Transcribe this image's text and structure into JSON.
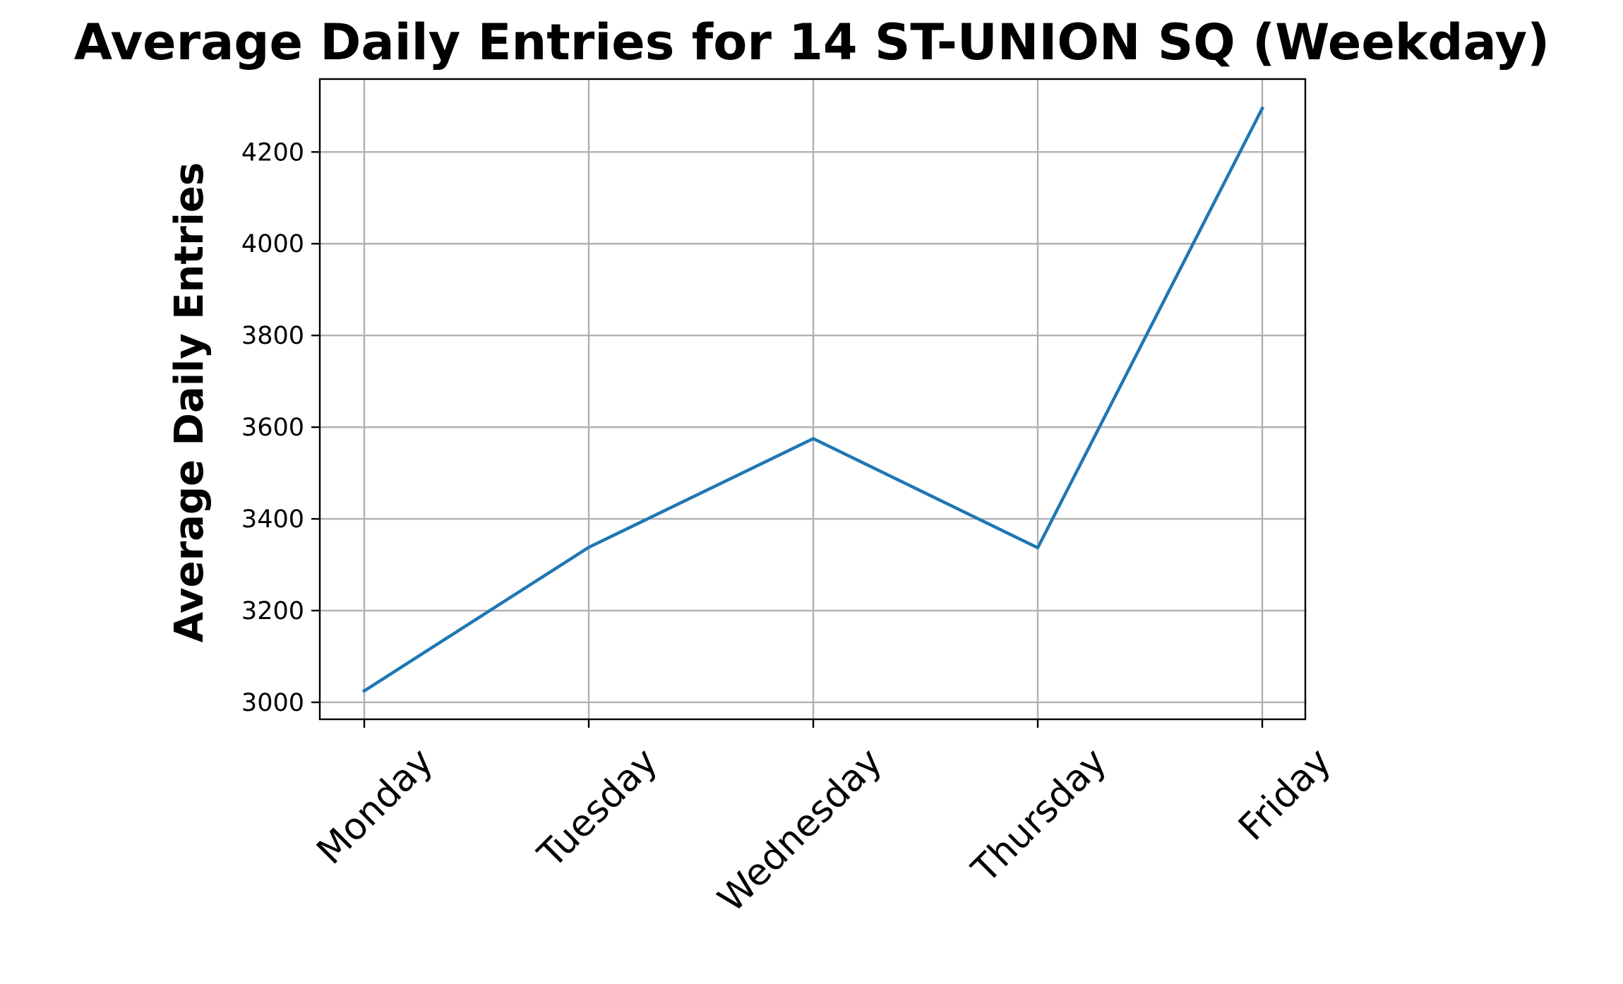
{
  "chart_data": {
    "type": "line",
    "title": "Average Daily Entries for 14 ST-UNION SQ (Weekday)",
    "xlabel": "",
    "ylabel": "Average Daily Entries",
    "categories": [
      "Monday",
      "Tuesday",
      "Wednesday",
      "Thursday",
      "Friday"
    ],
    "series": [
      {
        "values": [
          3025,
          3338,
          3575,
          3337,
          4295
        ],
        "color": "#1f77b4"
      }
    ],
    "yticks": [
      3000,
      3200,
      3400,
      3600,
      3800,
      4000,
      4200
    ],
    "ytick_labels": [
      "3000",
      "3200",
      "3400",
      "3600",
      "3800",
      "4000",
      "4200"
    ],
    "ylim": [
      2963,
      4359
    ],
    "grid": true,
    "legend": "none",
    "xtick_rotation": 45
  }
}
